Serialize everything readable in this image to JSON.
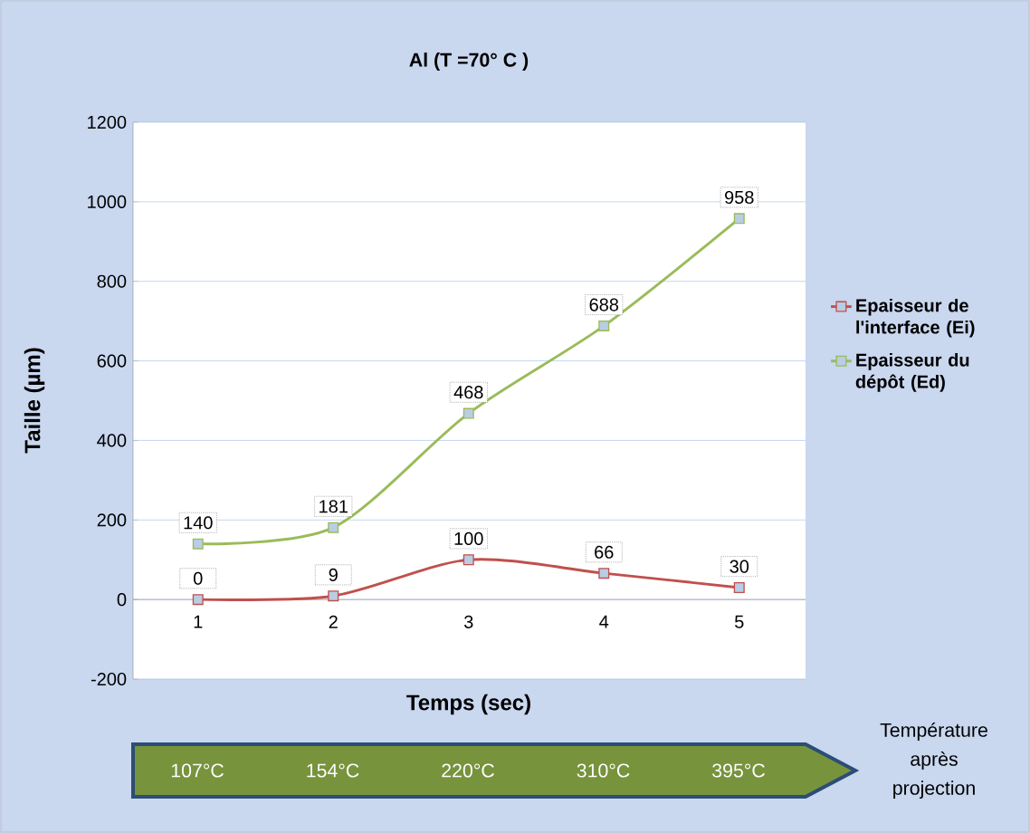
{
  "chart_data": {
    "type": "line",
    "title": "Al (T =70° C )",
    "xlabel": "Temps (sec)",
    "ylabel": "Taille (µm)",
    "categories": [
      "1",
      "2",
      "3",
      "4",
      "5"
    ],
    "series": [
      {
        "name": "Epaisseur de l'interface (Ei)",
        "color": "#c0504d",
        "values": [
          0,
          9,
          100,
          66,
          30
        ]
      },
      {
        "name": "Epaisseur du dépôt (Ed)",
        "color": "#9bbb59",
        "values": [
          140,
          181,
          468,
          688,
          958
        ]
      }
    ],
    "ylim": [
      -200,
      1200
    ],
    "yticks": [
      -200,
      0,
      200,
      400,
      600,
      800,
      1000,
      1200
    ],
    "grid": "y",
    "legend": "right",
    "marker": "square",
    "data_labels": true,
    "annotations": [
      "107°C",
      "154°C",
      "220°C",
      "310°C",
      "395°C",
      "Température après projection"
    ]
  }
}
